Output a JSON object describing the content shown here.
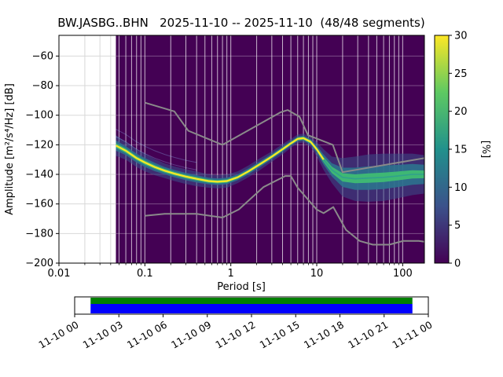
{
  "title": "BW.JASBG..BHN   2025-11-10 -- 2025-11-10  (48/48 segments)",
  "axes": {
    "x_label": "Period [s]",
    "y_label": "Amplitude [m²/s⁴/Hz] [dB]",
    "x_ticks": [
      {
        "v": 0.01,
        "label": "0.01"
      },
      {
        "v": 0.1,
        "label": "0.1"
      },
      {
        "v": 1,
        "label": "1"
      },
      {
        "v": 10,
        "label": "10"
      },
      {
        "v": 100,
        "label": "100"
      }
    ],
    "y_ticks": [
      {
        "v": -200,
        "label": "−200"
      },
      {
        "v": -180,
        "label": "−180"
      },
      {
        "v": -160,
        "label": "−160"
      },
      {
        "v": -140,
        "label": "−140"
      },
      {
        "v": -120,
        "label": "−120"
      },
      {
        "v": -100,
        "label": "−100"
      },
      {
        "v": -80,
        "label": "−80"
      },
      {
        "v": -60,
        "label": "−60"
      }
    ]
  },
  "colorbar": {
    "label": "[%]",
    "min": 0,
    "max": 30,
    "ticks": [
      0,
      5,
      10,
      15,
      20,
      25,
      30
    ],
    "stops": [
      {
        "o": 0,
        "c": "#440154"
      },
      {
        "o": 0.25,
        "c": "#3b528b"
      },
      {
        "o": 0.5,
        "c": "#21918c"
      },
      {
        "o": 0.75,
        "c": "#5ec962"
      },
      {
        "o": 1,
        "c": "#fde725"
      }
    ]
  },
  "timeline": {
    "labels": [
      "11-10 00",
      "11-10 03",
      "11-10 06",
      "11-10 09",
      "11-10 12",
      "11-10 15",
      "11-10 18",
      "11-10 21",
      "11-11 00"
    ],
    "green": "#008000",
    "blue": "#0000ff",
    "coverage_start": 0.045,
    "coverage_end": 0.955
  },
  "chart_data": {
    "type": "heatmap",
    "title": "BW.JASBG..BHN   2025-11-10 -- 2025-11-10  (48/48 segments)",
    "xlabel": "Period [s]",
    "ylabel": "Amplitude [m²/s⁴/Hz] [dB]",
    "x_scale": "log",
    "xlim": [
      0.01,
      179
    ],
    "ylim": [
      -200,
      -46
    ],
    "grid": true,
    "background_color": "#440154",
    "colorbar_label": "[%]",
    "colorbar_range": [
      0,
      30
    ],
    "data_start_period": 0.046,
    "ridge_periods": [
      0.046,
      0.06,
      0.08,
      0.1,
      0.13,
      0.17,
      0.22,
      0.3,
      0.4,
      0.55,
      0.7,
      0.9,
      1.2,
      1.6,
      2.2,
      3.0,
      4.0,
      5.0,
      6.0,
      7.0,
      8.5,
      10,
      12,
      15,
      20,
      28,
      40,
      60,
      90,
      130,
      179
    ],
    "ridge_db": [
      -120.5,
      -124,
      -129,
      -132,
      -135,
      -137.5,
      -139.5,
      -141.5,
      -143,
      -144.5,
      -145,
      -144.5,
      -142,
      -138,
      -133,
      -128,
      -123,
      -119,
      -116,
      -115.5,
      -118,
      -123,
      -130,
      -137,
      -142,
      -143,
      -142.5,
      -142,
      -141,
      -140,
      -140
    ],
    "halfwidth_broad": [
      7,
      6,
      6,
      6,
      5.5,
      5,
      5,
      5,
      5,
      4.5,
      4.5,
      4.5,
      4,
      4,
      4,
      3.5,
      3.5,
      3,
      3,
      3,
      3.5,
      5,
      7,
      9,
      13,
      15,
      16,
      16,
      15,
      14,
      13
    ],
    "halfwidth_mid": [
      3.5,
      3,
      3,
      3,
      2.8,
      2.5,
      2.5,
      2.5,
      2.5,
      2.2,
      2.2,
      2.2,
      2,
      2,
      2,
      1.8,
      1.8,
      1.6,
      1.6,
      1.6,
      1.8,
      2.5,
      3.5,
      4.5,
      6.5,
      7.5,
      8,
      8,
      7.5,
      7,
      6.5
    ],
    "halfwidth_core": [
      1.6,
      1.5,
      1.4,
      1.4,
      1.3,
      1.2,
      1.2,
      1.2,
      1.2,
      1.1,
      1.1,
      1.1,
      1,
      1,
      1,
      1,
      1,
      1,
      1,
      1,
      1.1,
      1.3,
      1.7,
      2.2,
      2.8,
      3,
      3.2,
      3.2,
      3,
      2.8,
      2.6
    ],
    "artifact_offsets": [
      6,
      11
    ],
    "artifact_point_count": 9,
    "band_colors": {
      "broad": "#3b528b",
      "mid": "#2c728e",
      "core": "#3fbc73",
      "ridge": "#fde725",
      "ridge_long": "#2f9e8f"
    },
    "noise_models": {
      "color": "#8a8a8a",
      "nhnm": [
        [
          0.1,
          -91.5
        ],
        [
          0.22,
          -97.4
        ],
        [
          0.32,
          -110.5
        ],
        [
          0.8,
          -120
        ],
        [
          3.8,
          -98
        ],
        [
          4.6,
          -96.5
        ],
        [
          6.3,
          -101
        ],
        [
          7.9,
          -113.5
        ],
        [
          15.4,
          -120
        ],
        [
          20,
          -138.5
        ],
        [
          179,
          -129
        ]
      ],
      "nlnm": [
        [
          0.1,
          -168
        ],
        [
          0.17,
          -166.7
        ],
        [
          0.4,
          -166.7
        ],
        [
          0.8,
          -169.2
        ],
        [
          1.24,
          -163.7
        ],
        [
          2.4,
          -148.6
        ],
        [
          4.3,
          -141.1
        ],
        [
          5,
          -141.1
        ],
        [
          6,
          -149
        ],
        [
          10,
          -163.8
        ],
        [
          12,
          -166.2
        ],
        [
          15.6,
          -162.1
        ],
        [
          21.9,
          -177.5
        ],
        [
          31.6,
          -185
        ],
        [
          45,
          -187.5
        ],
        [
          70,
          -187.5
        ],
        [
          101,
          -185
        ],
        [
          154,
          -185
        ],
        [
          179,
          -185.5
        ]
      ]
    }
  }
}
